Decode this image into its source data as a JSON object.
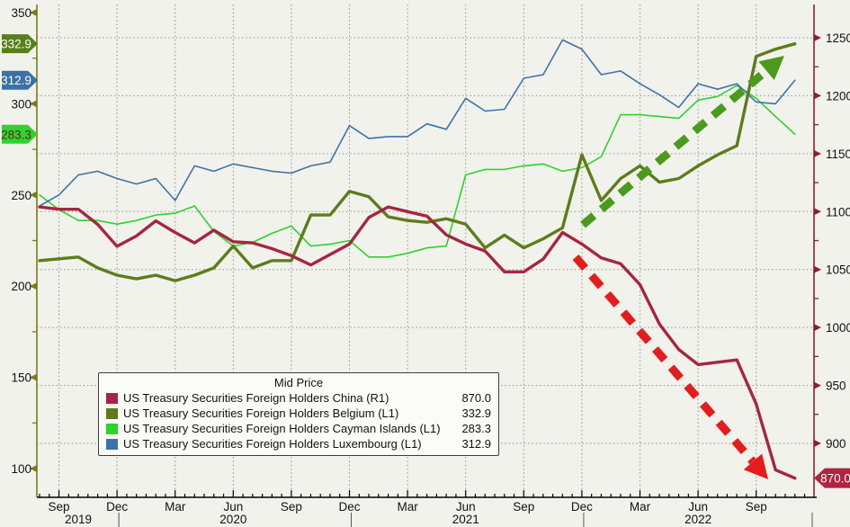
{
  "chart_data": {
    "type": "line",
    "title": "",
    "months": [
      "Aug 2019",
      "Sep 2019",
      "Oct 2019",
      "Nov 2019",
      "Dec 2019",
      "Jan 2020",
      "Feb 2020",
      "Mar 2020",
      "Apr 2020",
      "May 2020",
      "Jun 2020",
      "Jul 2020",
      "Aug 2020",
      "Sep 2020",
      "Oct 2020",
      "Nov 2020",
      "Dec 2020",
      "Jan 2021",
      "Feb 2021",
      "Mar 2021",
      "Apr 2021",
      "May 2021",
      "Jun 2021",
      "Jul 2021",
      "Aug 2021",
      "Sep 2021",
      "Oct 2021",
      "Nov 2021",
      "Dec 2021",
      "Jan 2022",
      "Feb 2022",
      "Mar 2022",
      "Apr 2022",
      "May 2022",
      "Jun 2022",
      "Jul 2022",
      "Aug 2022",
      "Sep 2022",
      "Oct 2022",
      "Nov 2022"
    ],
    "series": [
      {
        "id": "cayman-islands",
        "name": "US Treasury Securities Foreign Holders Cayman Islands",
        "label": "US Treasury Securities Foreign Holders Cayman Islands  (L1)",
        "axis": "L1",
        "color": "#2bd32b",
        "width": 1.6,
        "last_label": "283.3",
        "values": [
          250,
          242,
          236,
          236,
          234,
          236,
          239,
          240,
          244,
          230,
          222,
          224,
          229,
          233,
          222,
          223,
          225,
          216,
          216,
          218,
          221,
          222,
          261,
          264,
          264,
          266,
          267,
          263,
          265,
          271,
          294,
          294,
          293,
          292,
          302,
          304,
          310,
          303,
          293,
          283.3
        ]
      },
      {
        "id": "luxembourg",
        "name": "US Treasury Securities Foreign Holders Luxembourg",
        "label": "US Treasury Securities Foreign Holders Luxembourg  (L1)",
        "axis": "L1",
        "color": "#3d72a8",
        "width": 1.6,
        "last_label": "312.9",
        "values": [
          244,
          250,
          261,
          263,
          259,
          256,
          259,
          247,
          266,
          263,
          267,
          265,
          263,
          262,
          266,
          268,
          288,
          281,
          282,
          282,
          289,
          286,
          303,
          296,
          297,
          314,
          316,
          335,
          330,
          316,
          318,
          311,
          305,
          298,
          311,
          308,
          311,
          301,
          300,
          312.9
        ]
      },
      {
        "id": "belgium",
        "name": "US Treasury Securities Foreign Holders Belgium",
        "label": "US Treasury Securities Foreign Holders Belgium  (L1)",
        "axis": "L1",
        "color": "#5d7c1a",
        "width": 3.4,
        "last_label": "332.9",
        "values": [
          214,
          215,
          216,
          210,
          206,
          204,
          206,
          203,
          206,
          210,
          222,
          210,
          214,
          214,
          239,
          239,
          252,
          249,
          238,
          236,
          235,
          237,
          234,
          221,
          228,
          221,
          226,
          232,
          272,
          247,
          259,
          266,
          257,
          259,
          266,
          272,
          277,
          326,
          330,
          332.9
        ]
      },
      {
        "id": "china",
        "name": "US Treasury Securities Foreign Holders China",
        "label": "US Treasury Securities Foreign Holders China  (R1)",
        "axis": "R1",
        "color": "#a82440",
        "width": 3.4,
        "last_label": "870.0",
        "values": [
          1104,
          1102,
          1102,
          1089,
          1070,
          1079,
          1092,
          1082,
          1073,
          1084,
          1074,
          1073,
          1068,
          1062,
          1054,
          1063,
          1072,
          1095,
          1104,
          1100,
          1096,
          1080,
          1072,
          1066,
          1048,
          1048,
          1059,
          1082,
          1072,
          1060,
          1055,
          1037,
          1003,
          981,
          968,
          970,
          972,
          934,
          877,
          870
        ]
      }
    ],
    "left_axis": {
      "ticks": [
        350,
        300,
        250,
        200,
        150,
        100
      ],
      "minor_ticks": [
        325,
        275,
        225,
        175,
        125
      ],
      "color": "#7a7b18",
      "range": [
        100,
        350
      ]
    },
    "right_axis": {
      "ticks": [
        1250,
        1200,
        1150,
        1100,
        1050,
        1000,
        950,
        900
      ],
      "minor_ticks": [
        1225,
        1175,
        1125,
        1075,
        1025,
        975,
        925
      ],
      "color": "#8e1e2f",
      "range": [
        870,
        1250
      ]
    },
    "x_axis": {
      "quarter_ticks": [
        {
          "label": "Sep",
          "month_index": 1
        },
        {
          "label": "Dec",
          "month_index": 4
        },
        {
          "label": "Mar",
          "month_index": 7
        },
        {
          "label": "Jun",
          "month_index": 10
        },
        {
          "label": "Sep",
          "month_index": 13
        },
        {
          "label": "Dec",
          "month_index": 16
        },
        {
          "label": "Mar",
          "month_index": 19
        },
        {
          "label": "Jun",
          "month_index": 22
        },
        {
          "label": "Sep",
          "month_index": 25
        },
        {
          "label": "Dec",
          "month_index": 28
        },
        {
          "label": "Mar",
          "month_index": 31
        },
        {
          "label": "Jun",
          "month_index": 34
        },
        {
          "label": "Sep",
          "month_index": 37
        }
      ],
      "years": [
        {
          "label": "2019",
          "month_index": 2
        },
        {
          "label": "2020",
          "month_index": 10
        },
        {
          "label": "2021",
          "month_index": 22
        },
        {
          "label": "2022",
          "month_index": 34
        }
      ],
      "year_separator_month_indices": [
        4,
        16,
        28
      ]
    },
    "badges": {
      "left": [
        {
          "id": "belgium",
          "value": "332.9",
          "at": 332.9,
          "axis": "L1",
          "bg": "#56801a",
          "text_color": "#ffffff"
        },
        {
          "id": "luxembourg",
          "value": "312.9",
          "at": 312.9,
          "axis": "L1",
          "bg": "#3a72a8",
          "text_color": "#ffffff"
        },
        {
          "id": "cayman-islands",
          "value": "283.3",
          "at": 283.3,
          "axis": "L1",
          "bg": "#2fd32f",
          "text_color": "#6b1f1f"
        }
      ],
      "right": [
        {
          "id": "china",
          "value": "870.0",
          "at": 870,
          "axis": "R1",
          "bg": "#b22340",
          "text_color": "#ffffff"
        }
      ]
    },
    "legend": {
      "title": "Mid Price"
    },
    "annotations": [
      {
        "id": "belgium-up-arrow",
        "type": "arrow",
        "color": "#4a9a1e",
        "from": [
          648,
          250
        ],
        "to": [
          872,
          62
        ],
        "width": 9,
        "dash": "16 11",
        "head_len": 26,
        "head_width": 27
      },
      {
        "id": "china-down-arrow",
        "type": "arrow",
        "color": "#e51c1c",
        "from": [
          640,
          286
        ],
        "to": [
          854,
          533
        ],
        "width": 9,
        "dash": "16 11",
        "head_len": 26,
        "head_width": 27
      }
    ],
    "grid": {
      "color": "#8f8f8f",
      "dash": "1.5 2.8"
    },
    "text_color": "#111111"
  }
}
